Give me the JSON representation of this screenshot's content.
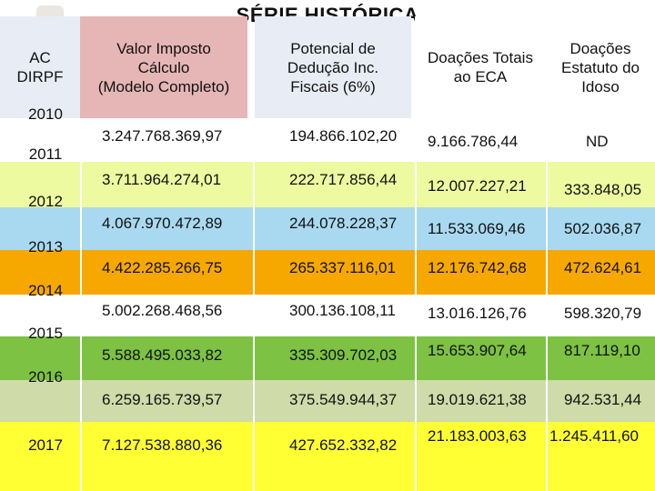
{
  "title": "SÉRIE HISTÓRICA",
  "headers": {
    "ac": "AC\nDIRPF",
    "valor": "Valor Imposto\nCálculo\n(Modelo Completo)",
    "potencial": "Potencial de\nDedução Inc.\nFiscais (6%)",
    "eca": "Doações Totais\nao ECA",
    "idoso": "Doações\nEstatuto do\nIdoso"
  },
  "colors": {
    "header_ac": "#e8ecf5",
    "header_valor": "#e6b6b6",
    "header_potencial": "#e8ecf5",
    "header_eca": "#ffffff",
    "header_idoso": "#ffffff",
    "band_2010": "#ffffff",
    "band_2011": "#eefaa0",
    "band_2012": "#a9d9f0",
    "band_2013": "#f7a800",
    "band_2014": "#ffffff",
    "band_2015": "#7dc243",
    "band_2016": "#cfdba8",
    "band_2017": "#ffff33"
  },
  "rows": [
    {
      "year": "2010",
      "valor": "3.247.768.369,97",
      "potencial": "194.866.102,20",
      "eca": "9.166.786,44",
      "idoso": "ND"
    },
    {
      "year": "2011",
      "valor": "3.711.964.274,01",
      "potencial": "222.717.856,44",
      "eca": "12.007.227,21",
      "idoso": "333.848,05"
    },
    {
      "year": "2012",
      "valor": "4.067.970.472,89",
      "potencial": "244.078.228,37",
      "eca": "11.533.069,46",
      "idoso": "502.036,87"
    },
    {
      "year": "2013",
      "valor": "4.422.285.266,75",
      "potencial": "265.337.116,01",
      "eca": "12.176.742,68",
      "idoso": "472.624,61"
    },
    {
      "year": "2014",
      "valor": "5.002.268.468,56",
      "potencial": "300.136.108,11",
      "eca": "13.016.126,76",
      "idoso": "598.320,79"
    },
    {
      "year": "2015",
      "valor": "5.588.495.033,82",
      "potencial": "335.309.702,03",
      "eca": "15.653.907,64",
      "idoso": "817.119,10"
    },
    {
      "year": "2016",
      "valor": "6.259.165.739,57",
      "potencial": "375.549.944,37",
      "eca": "19.019.621,38",
      "idoso": "942.531,44"
    },
    {
      "year": "2017",
      "valor": "7.127.538.880,36",
      "potencial": "427.652.332,82",
      "eca": "21.183.003,63",
      "idoso": "1.245.411,60"
    }
  ]
}
